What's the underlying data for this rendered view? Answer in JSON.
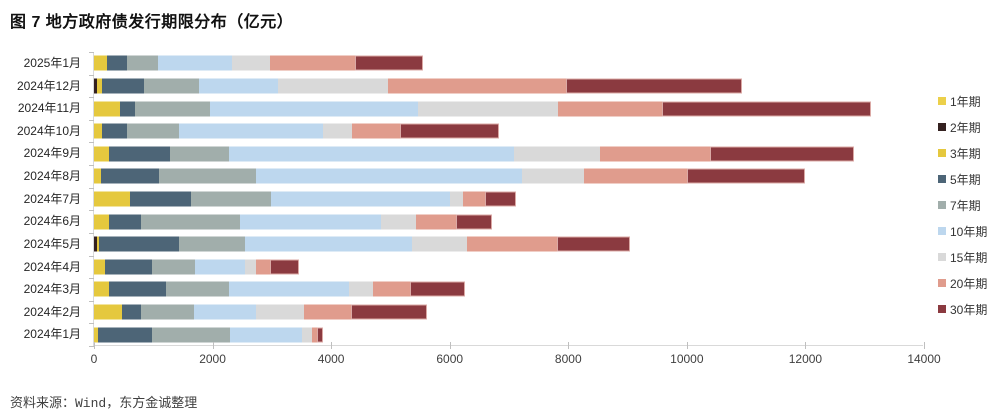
{
  "title": "图 7 地方政府债发行期限分布（亿元）",
  "source": "资料来源：Wind，东方金诚整理",
  "chart_data": {
    "type": "bar",
    "orientation": "horizontal",
    "stacked": true,
    "title": "图 7 地方政府债发行期限分布（亿元）",
    "xlabel": "",
    "ylabel": "",
    "xlim": [
      0,
      14000
    ],
    "x_ticks": [
      0,
      2000,
      4000,
      6000,
      8000,
      10000,
      12000,
      14000
    ],
    "grid": false,
    "legend_position": "right",
    "categories": [
      "2025年1月",
      "2024年12月",
      "2024年11月",
      "2024年10月",
      "2024年9月",
      "2024年8月",
      "2024年7月",
      "2024年6月",
      "2024年5月",
      "2024年4月",
      "2024年3月",
      "2024年2月",
      "2024年1月"
    ],
    "series": [
      {
        "name": "1年期",
        "color": "#ecd04a",
        "values": [
          0,
          0,
          0,
          0,
          0,
          0,
          0,
          0,
          0,
          0,
          0,
          0,
          0
        ]
      },
      {
        "name": "2年期",
        "color": "#342120",
        "values": [
          0,
          55,
          0,
          0,
          0,
          0,
          0,
          0,
          45,
          0,
          0,
          0,
          0
        ]
      },
      {
        "name": "3年期",
        "color": "#e5c83e",
        "values": [
          220,
          85,
          440,
          140,
          255,
          110,
          600,
          250,
          45,
          190,
          245,
          470,
          70
        ]
      },
      {
        "name": "5年期",
        "color": "#4d6577",
        "values": [
          330,
          700,
          255,
          410,
          1035,
          985,
          1035,
          535,
          1340,
          790,
          965,
          315,
          910
        ]
      },
      {
        "name": "7年期",
        "color": "#a1aeab",
        "values": [
          525,
          930,
          1270,
          890,
          980,
          1630,
          1350,
          1670,
          1125,
          730,
          1075,
          900,
          1310
        ]
      },
      {
        "name": "10年期",
        "color": "#bdd7ee",
        "values": [
          1250,
          1330,
          3505,
          2425,
          4820,
          4490,
          3025,
          2380,
          2810,
          845,
          2010,
          1050,
          1220
        ]
      },
      {
        "name": "15年期",
        "color": "#d9d9d9",
        "values": [
          650,
          1860,
          2355,
          485,
          1440,
          1055,
          215,
          590,
          930,
          170,
          420,
          805,
          175
        ]
      },
      {
        "name": "20年期",
        "color": "#e09c8d",
        "values": [
          1420,
          3000,
          1765,
          805,
          1855,
          1725,
          375,
          675,
          1510,
          240,
          610,
          800,
          70
        ]
      },
      {
        "name": "30年期",
        "color": "#8b3a40",
        "border": "#dba9a5",
        "values": [
          1150,
          2970,
          3520,
          1675,
          2440,
          2005,
          515,
          615,
          1240,
          490,
          940,
          1275,
          115
        ]
      }
    ]
  }
}
